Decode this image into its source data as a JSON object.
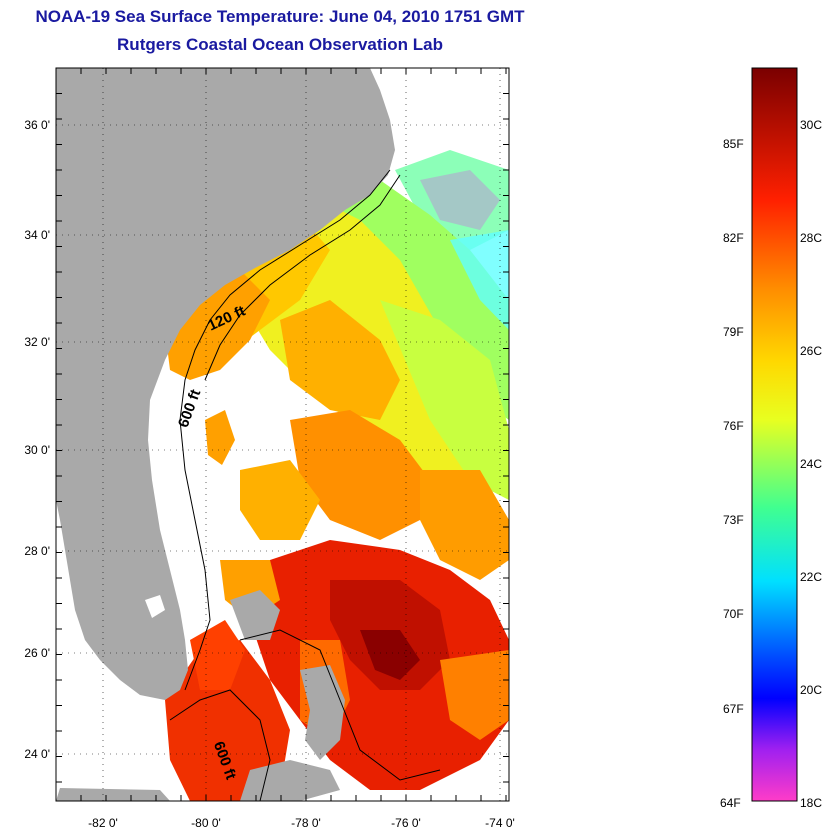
{
  "header": {
    "title": "NOAA-19 Sea Surface Temperature:  June 04, 2010 1751 GMT",
    "subtitle": "Rutgers Coastal Ocean Observation Lab"
  },
  "map": {
    "lat_labels": [
      "36 0'",
      "34 0'",
      "32 0'",
      "30 0'",
      "28 0'",
      "26 0'",
      "24 0'"
    ],
    "lon_labels": [
      "-82 0'",
      "-80 0'",
      "-78 0'",
      "-76 0'",
      "-74 0'"
    ],
    "depth_labels": [
      "120 ft",
      "600 ft",
      "600 ft"
    ],
    "land_color": "#a9a9a9",
    "cloud_color": "#ffffff"
  },
  "colorbar": {
    "fahrenheit_labels": [
      "85F",
      "82F",
      "79F",
      "76F",
      "73F",
      "70F",
      "67F",
      "64F"
    ],
    "celsius_labels": [
      "30C",
      "28C",
      "26C",
      "24C",
      "22C",
      "20C",
      "18C"
    ],
    "range_c": [
      18,
      31.5
    ]
  }
}
